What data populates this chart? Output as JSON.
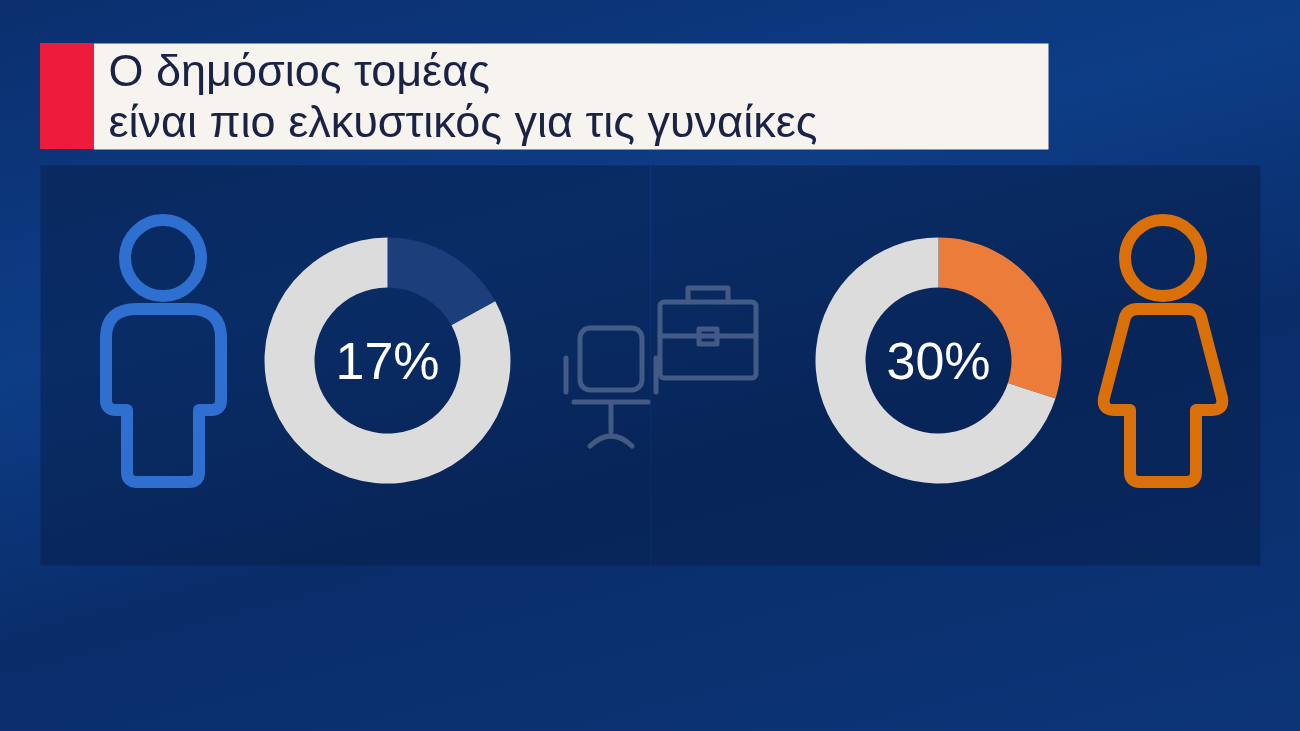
{
  "chart_data": [
    {
      "type": "donut",
      "title": "Ο δημόσιος τομέας\nείναι πιο ελκυστικός για τις γυναίκες",
      "categories": [
        null,
        null
      ],
      "values": [
        17,
        83
      ],
      "colors": [
        "#1c3f7c",
        "#dcdcdc"
      ],
      "value_labels": [
        "17%",
        null
      ]
    },
    {
      "type": "donut",
      "categories": [
        null,
        null
      ],
      "values": [
        30,
        70
      ],
      "colors": [
        "#ec7c3a",
        "#dcdcdc"
      ],
      "value_labels": [
        "30%",
        null
      ]
    }
  ]
}
